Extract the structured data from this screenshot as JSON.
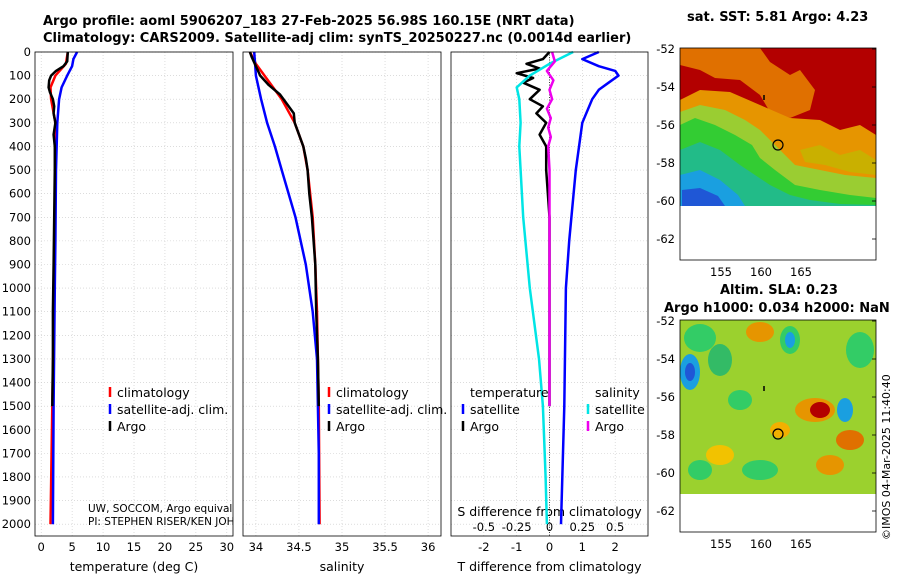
{
  "header": {
    "line1": "Argo profile: aoml 5906207_183 27-Feb-2025 56.98S 160.15E (NRT data)",
    "line2": "Climatology: CARS2009. Satellite-adj clim: synTS_20250227.nc (0.0014d earlier)"
  },
  "map_sst": {
    "title": "sat. SST: 5.81 Argo: 4.23",
    "x_ticks": [
      "155",
      "160",
      "165"
    ],
    "y_ticks": [
      "-52",
      "-54",
      "-56",
      "-58",
      "-60",
      "-62"
    ]
  },
  "map_sla": {
    "title1": "Altim. SLA: 0.23",
    "title2": "Argo h1000: 0.034 h2000: NaN",
    "x_ticks": [
      "155",
      "160",
      "165"
    ],
    "y_ticks": [
      "-52",
      "-54",
      "-56",
      "-58",
      "-60",
      "-62"
    ]
  },
  "credit": "©IMOS 04-Mar-2025 11:40:40",
  "note": {
    "line1": "UW, SOCCOM, Argo equivale",
    "line2": "PI: STEPHEN RISER/KEN JOHN"
  },
  "chart_data": [
    {
      "type": "line",
      "title": "",
      "xlabel": "temperature (deg C)",
      "ylabel": "",
      "xlim": [
        -1,
        31
      ],
      "ylim": [
        2050,
        0
      ],
      "x_ticks": [
        "0",
        "5",
        "10",
        "15",
        "20",
        "25",
        "30"
      ],
      "y_ticks": [
        "0",
        "100",
        "200",
        "300",
        "400",
        "500",
        "600",
        "700",
        "800",
        "900",
        "1000",
        "1100",
        "1200",
        "1300",
        "1400",
        "1500",
        "1600",
        "1700",
        "1800",
        "1900",
        "2000"
      ],
      "legend": [
        "climatology",
        "satellite-adj. clim.",
        "Argo"
      ],
      "series": [
        {
          "name": "climatology",
          "color": "#ff0000",
          "depth": [
            0,
            50,
            100,
            150,
            200,
            300,
            500,
            800,
            1000,
            1500,
            2000
          ],
          "values": [
            4.3,
            4.0,
            2.3,
            1.5,
            1.6,
            2.3,
            2.3,
            2.2,
            2.1,
            1.8,
            1.5
          ]
        },
        {
          "name": "satellite-adj. clim.",
          "color": "#0000ff",
          "depth": [
            0,
            30,
            60,
            100,
            150,
            200,
            300,
            500,
            800,
            1000,
            1500,
            2000
          ],
          "values": [
            5.8,
            5.2,
            5.0,
            4.2,
            3.3,
            2.9,
            2.6,
            2.4,
            2.3,
            2.2,
            2.0,
            1.9
          ]
        },
        {
          "name": "Argo",
          "color": "#000000",
          "depth": [
            0,
            40,
            60,
            80,
            100,
            120,
            150,
            170,
            200,
            230,
            260,
            300,
            350,
            400,
            500,
            700,
            900,
            1100,
            1300,
            1500
          ],
          "values": [
            4.3,
            4.2,
            3.6,
            2.4,
            1.6,
            1.3,
            1.2,
            1.4,
            1.9,
            2.1,
            2.0,
            2.3,
            2.0,
            2.2,
            2.2,
            2.1,
            2.0,
            1.9,
            1.9,
            1.8
          ]
        }
      ]
    },
    {
      "type": "line",
      "xlabel": "salinity",
      "xlim": [
        33.85,
        36.15
      ],
      "ylim": [
        2050,
        0
      ],
      "x_ticks": [
        "34",
        "34.5",
        "35",
        "35.5",
        "36"
      ],
      "legend": [
        "climatology",
        "satellite-adj. clim.",
        "Argo"
      ],
      "series": [
        {
          "name": "climatology",
          "color": "#ff0000",
          "depth": [
            0,
            50,
            100,
            150,
            200,
            300,
            400,
            500,
            700,
            900,
            1100,
            1300,
            1500,
            2000
          ],
          "values": [
            33.93,
            34.0,
            34.1,
            34.2,
            34.3,
            34.45,
            34.55,
            34.6,
            34.66,
            34.69,
            34.71,
            34.72,
            34.73,
            34.74
          ]
        },
        {
          "name": "satellite-adj. clim.",
          "color": "#0000ff",
          "depth": [
            0,
            50,
            100,
            200,
            300,
            400,
            500,
            700,
            900,
            1100,
            1300,
            1500,
            1700,
            2000
          ],
          "values": [
            33.98,
            33.99,
            34.0,
            34.06,
            34.13,
            34.22,
            34.3,
            34.46,
            34.58,
            34.66,
            34.71,
            34.72,
            34.73,
            34.73
          ]
        },
        {
          "name": "Argo",
          "color": "#000000",
          "depth": [
            0,
            20,
            60,
            100,
            140,
            180,
            220,
            260,
            300,
            350,
            400,
            450,
            500,
            600,
            700,
            800,
            900,
            1100,
            1300,
            1500
          ],
          "values": [
            33.93,
            33.95,
            34.0,
            34.05,
            34.15,
            34.28,
            34.36,
            34.44,
            34.45,
            34.5,
            34.55,
            34.58,
            34.6,
            34.62,
            34.65,
            34.67,
            34.69,
            34.7,
            34.72,
            34.73
          ]
        }
      ]
    },
    {
      "type": "line",
      "xlabel": "T difference from climatology",
      "xlabel2": "S difference from climatology",
      "xlim": [
        -3,
        3
      ],
      "ylim": [
        2050,
        0
      ],
      "x_ticks": [
        "-2",
        "-1",
        "0",
        "1",
        "2"
      ],
      "x_ticks_salinity": [
        "-0.5",
        "-0.25",
        "0",
        "0.25",
        "0.5"
      ],
      "legend_headers": [
        "temperature",
        "salinity"
      ],
      "legend": [
        "satellite",
        "Argo",
        "satellite",
        "Argo"
      ],
      "series": [
        {
          "name": "T satellite",
          "color": "#0000ff",
          "depth": [
            0,
            30,
            60,
            80,
            100,
            130,
            160,
            200,
            300,
            500,
            800,
            1000,
            1500,
            2000
          ],
          "values": [
            1.5,
            1.0,
            1.5,
            2.0,
            2.1,
            1.8,
            1.5,
            1.3,
            1.0,
            0.8,
            0.6,
            0.5,
            0.45,
            0.35
          ]
        },
        {
          "name": "T Argo",
          "color": "#000000",
          "depth": [
            0,
            30,
            50,
            70,
            90,
            110,
            130,
            160,
            200,
            230,
            260,
            300,
            350,
            400,
            450,
            500,
            700,
            900,
            1100,
            1300,
            1500
          ],
          "values": [
            0.0,
            -0.2,
            -0.7,
            -0.3,
            -1.0,
            -0.5,
            -0.8,
            -0.3,
            -0.6,
            -0.2,
            -0.4,
            -0.1,
            -0.3,
            -0.1,
            -0.1,
            -0.1,
            0.0,
            0.0,
            0.0,
            0.0,
            0.0
          ]
        },
        {
          "name": "S satellite",
          "color": "#00e5e5",
          "depth": [
            0,
            50,
            100,
            150,
            200,
            300,
            400,
            500,
            700,
            1000,
            1300,
            1500,
            1800,
            2000
          ],
          "values": [
            0.18,
            0.0,
            -0.15,
            -0.25,
            -0.23,
            -0.22,
            -0.23,
            -0.22,
            -0.2,
            -0.15,
            -0.08,
            -0.05,
            -0.03,
            -0.02
          ]
        },
        {
          "name": "S Argo",
          "color": "#ee00ee",
          "depth": [
            0,
            40,
            80,
            120,
            160,
            200,
            240,
            280,
            320,
            360,
            400,
            500,
            700,
            900,
            1100,
            1300,
            1500
          ],
          "values": [
            0.02,
            0.04,
            -0.02,
            0.03,
            0.0,
            0.02,
            -0.02,
            0.01,
            -0.01,
            0.01,
            -0.01,
            0.0,
            0.0,
            0.0,
            0.0,
            0.0,
            0.0
          ]
        }
      ]
    }
  ]
}
